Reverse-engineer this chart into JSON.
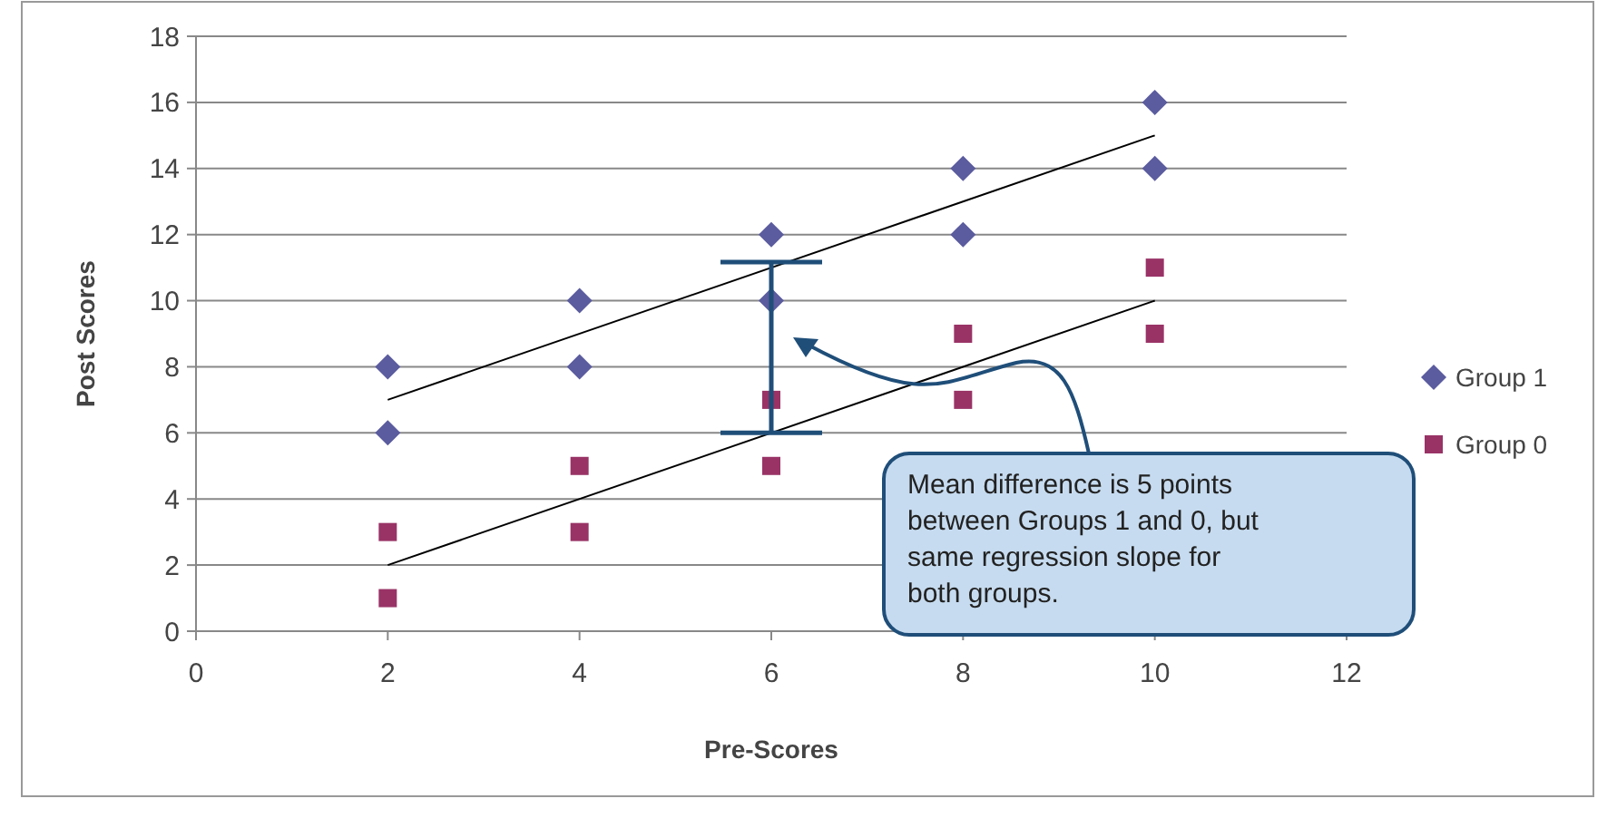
{
  "chart_data": {
    "type": "scatter",
    "xlabel": "Pre-Scores",
    "ylabel": "Post Scores",
    "xlim": [
      0,
      12
    ],
    "xticks": [
      0,
      2,
      4,
      6,
      8,
      10,
      12
    ],
    "ylim": [
      0,
      18
    ],
    "yticks": [
      0,
      2,
      4,
      6,
      8,
      10,
      12,
      14,
      16,
      18
    ],
    "grid": "y",
    "legend": "right",
    "series": [
      {
        "name": "Group 1",
        "color": "#5b5b9f",
        "marker": "diamond",
        "x": [
          2,
          2,
          4,
          4,
          6,
          6,
          8,
          8,
          10,
          10
        ],
        "values": [
          8,
          6,
          10,
          8,
          12,
          10,
          14,
          12,
          16,
          14
        ]
      },
      {
        "name": "Group 0",
        "color": "#993366",
        "marker": "square",
        "x": [
          2,
          2,
          4,
          4,
          6,
          6,
          8,
          8,
          10,
          10
        ],
        "values": [
          3,
          1,
          5,
          3,
          7,
          5,
          9,
          7,
          11,
          9
        ]
      },
      {
        "type": "line",
        "color": "#000000",
        "x": [
          2,
          10
        ],
        "values": [
          7,
          15
        ]
      },
      {
        "type": "line",
        "color": "#000000",
        "x": [
          2,
          10
        ],
        "values": [
          2,
          10
        ]
      }
    ],
    "annotations": [
      "Mean difference is 5 points between Groups 1 and 0, but same regression slope for both groups."
    ]
  }
}
